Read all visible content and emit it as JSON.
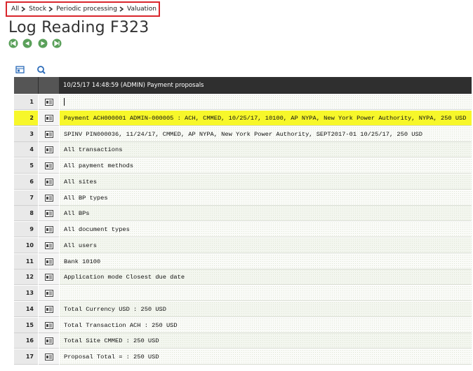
{
  "breadcrumb": [
    "All",
    "Stock",
    "Periodic processing",
    "Valuation"
  ],
  "title": "Log Reading F323",
  "table": {
    "header": "10/25/17 14:48:59 (ADMIN) Payment proposals",
    "rows": [
      {
        "number": "1"
      },
      {
        "number": "2",
        "text": "Payment ACH000001 ADMIN-000005 : ACH, CMMED, 10/25/17, 10100, AP NYPA, New York Power Authority, NYPA, 250 USD"
      },
      {
        "number": "3",
        "text": "SPINV PIN000036, 11/24/17, CMMED, AP NYPA, New York Power Authority, SEPT2017-01 10/25/17, 250 USD"
      },
      {
        "number": "4",
        "text": "All transactions"
      },
      {
        "number": "5",
        "text": "All payment methods"
      },
      {
        "number": "6",
        "text": "All sites"
      },
      {
        "number": "7",
        "text": "All BP types"
      },
      {
        "number": "8",
        "text": "All BPs"
      },
      {
        "number": "9",
        "text": "All document types"
      },
      {
        "number": "10",
        "text": "All users"
      },
      {
        "number": "11",
        "text": "Bank 10100"
      },
      {
        "number": "12",
        "text": "Application mode Closest due date"
      },
      {
        "number": "13"
      },
      {
        "number": "14",
        "text": "Total Currency USD : 250 USD"
      },
      {
        "number": "15",
        "text": "Total Transaction ACH : 250 USD"
      },
      {
        "number": "16",
        "text": "Total Site CMMED : 250 USD"
      },
      {
        "number": "17",
        "text": "Proposal Total = : 250 USD"
      }
    ]
  }
}
